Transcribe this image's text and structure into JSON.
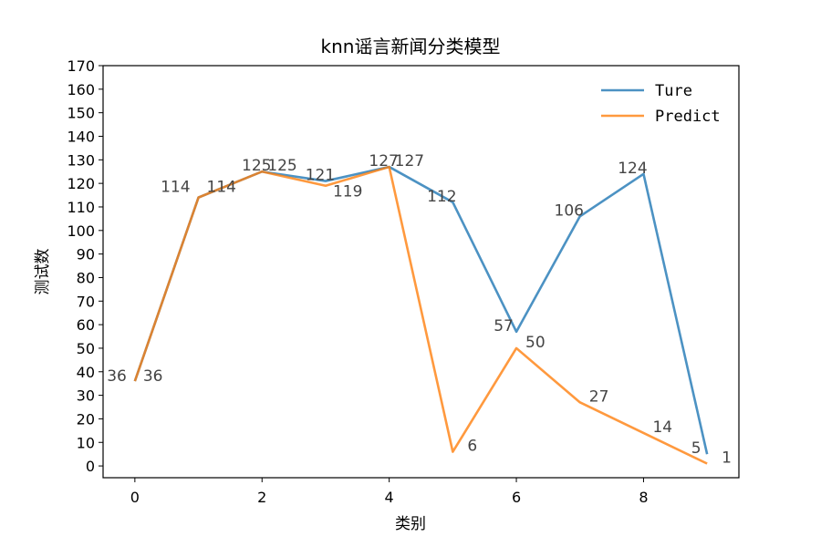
{
  "chart_data": {
    "type": "line",
    "title": "knn谣言新闻分类模型",
    "xlabel": "类别",
    "ylabel": "测试数",
    "x": [
      0,
      1,
      2,
      3,
      4,
      5,
      6,
      7,
      8,
      9
    ],
    "xticks": [
      0,
      2,
      4,
      6,
      8
    ],
    "xlim": [
      -0.5,
      9.5
    ],
    "yticks": [
      0,
      10,
      20,
      30,
      40,
      50,
      60,
      70,
      80,
      90,
      100,
      110,
      120,
      130,
      140,
      150,
      160,
      170
    ],
    "ylim": [
      -5,
      170
    ],
    "grid": false,
    "legend_position": "top-right",
    "series": [
      {
        "name": "Ture",
        "color": "#1f77b4",
        "values": [
          36,
          114,
          125,
          121,
          127,
          112,
          57,
          106,
          124,
          5
        ],
        "label_text": [
          "36",
          "114",
          "125",
          "121",
          "127",
          "112",
          "57",
          "106",
          "124",
          "5"
        ]
      },
      {
        "name": "Predict",
        "color": "#ff7f0e",
        "values": [
          36,
          114,
          125,
          119,
          127,
          6,
          50,
          27,
          14,
          1
        ],
        "label_text": [
          "36",
          "114",
          "125",
          "119",
          "127",
          "6",
          "50",
          "27",
          "14",
          "1"
        ]
      }
    ]
  }
}
